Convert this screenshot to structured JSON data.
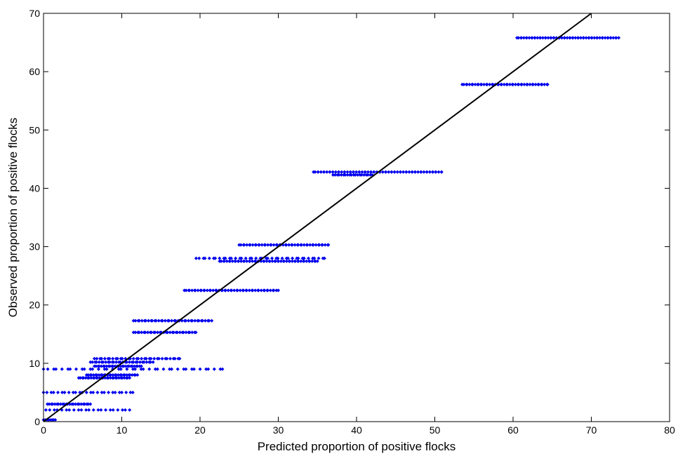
{
  "chart_data": {
    "type": "scatter",
    "title": "",
    "xlabel": "Predicted proportion of positive flocks",
    "ylabel": "Observed proportion of positive flocks",
    "xlim": [
      0,
      80
    ],
    "ylim": [
      0,
      70
    ],
    "xticks": [
      "0",
      "10",
      "20",
      "30",
      "40",
      "50",
      "60",
      "70",
      "80"
    ],
    "yticks": [
      "0",
      "10",
      "20",
      "30",
      "40",
      "50",
      "60",
      "70"
    ],
    "grid": false,
    "legend": "none",
    "colors": {
      "points": "#0000ee",
      "line": "#000000",
      "axes": "#000000",
      "background": "#ffffff"
    },
    "reference_line": {
      "x": [
        0,
        70
      ],
      "y": [
        0,
        70
      ]
    },
    "clusters": [
      {
        "y": 0.3,
        "x_from": 0.0,
        "x_to": 1.5,
        "n": 8
      },
      {
        "y": 2.0,
        "x_from": 0.3,
        "x_to": 11.0,
        "n": 22
      },
      {
        "y": 3.0,
        "x_from": 0.5,
        "x_to": 6.0,
        "n": 24
      },
      {
        "y": 5.0,
        "x_from": 0.0,
        "x_to": 11.5,
        "n": 26
      },
      {
        "y": 7.5,
        "x_from": 4.5,
        "x_to": 11.0,
        "n": 30
      },
      {
        "y": 8.0,
        "x_from": 5.5,
        "x_to": 12.0,
        "n": 30
      },
      {
        "y": 9.0,
        "x_from": 0.0,
        "x_to": 23.0,
        "n": 40
      },
      {
        "y": 9.5,
        "x_from": 6.5,
        "x_to": 12.5,
        "n": 28
      },
      {
        "y": 10.2,
        "x_from": 6.0,
        "x_to": 14.0,
        "n": 30
      },
      {
        "y": 10.8,
        "x_from": 6.5,
        "x_to": 17.5,
        "n": 34
      },
      {
        "y": 15.3,
        "x_from": 11.5,
        "x_to": 19.5,
        "n": 32
      },
      {
        "y": 17.3,
        "x_from": 11.5,
        "x_to": 21.5,
        "n": 38
      },
      {
        "y": 22.5,
        "x_from": 18.0,
        "x_to": 30.0,
        "n": 50
      },
      {
        "y": 27.5,
        "x_from": 22.5,
        "x_to": 35.0,
        "n": 55
      },
      {
        "y": 28.0,
        "x_from": 19.5,
        "x_to": 36.0,
        "n": 40
      },
      {
        "y": 30.3,
        "x_from": 25.0,
        "x_to": 36.5,
        "n": 48
      },
      {
        "y": 42.3,
        "x_from": 37.0,
        "x_to": 42.0,
        "n": 20
      },
      {
        "y": 42.8,
        "x_from": 34.5,
        "x_to": 51.0,
        "n": 70
      },
      {
        "y": 57.8,
        "x_from": 53.5,
        "x_to": 64.5,
        "n": 48
      },
      {
        "y": 65.8,
        "x_from": 60.5,
        "x_to": 73.5,
        "n": 60
      }
    ]
  }
}
